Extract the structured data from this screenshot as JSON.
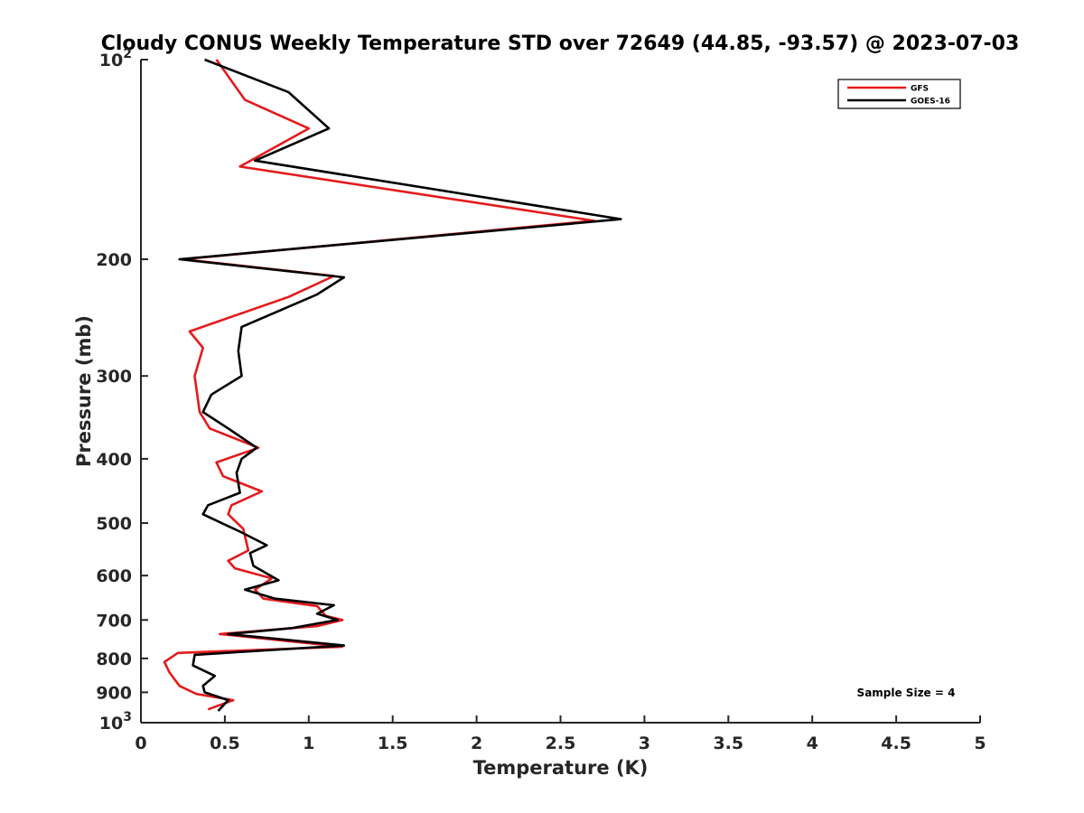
{
  "chart_data": {
    "type": "line",
    "title": "Cloudy CONUS Weekly Temperature STD over 72649 (44.85, -93.57) @ 2023-07-03",
    "xlabel": "Temperature (K)",
    "ylabel": "Pressure (mb)",
    "xlim": [
      0,
      5
    ],
    "ylim": [
      100,
      1000
    ],
    "y_scale": "log",
    "y_reversed": true,
    "grid": false,
    "legend_position": "top-right",
    "x_ticks": [
      {
        "value": 0,
        "label": "0"
      },
      {
        "value": 0.5,
        "label": "0.5"
      },
      {
        "value": 1,
        "label": "1"
      },
      {
        "value": 1.5,
        "label": "1.5"
      },
      {
        "value": 2,
        "label": "2"
      },
      {
        "value": 2.5,
        "label": "2.5"
      },
      {
        "value": 3,
        "label": "3"
      },
      {
        "value": 3.5,
        "label": "3.5"
      },
      {
        "value": 4,
        "label": "4"
      },
      {
        "value": 4.5,
        "label": "4.5"
      },
      {
        "value": 5,
        "label": "5"
      }
    ],
    "y_ticks": [
      {
        "value": 100,
        "base": "10",
        "exp": "2"
      },
      {
        "value": 200,
        "label": "200"
      },
      {
        "value": 300,
        "label": "300"
      },
      {
        "value": 400,
        "label": "400"
      },
      {
        "value": 500,
        "label": "500"
      },
      {
        "value": 600,
        "label": "600"
      },
      {
        "value": 700,
        "label": "700"
      },
      {
        "value": 800,
        "label": "800"
      },
      {
        "value": 900,
        "label": "900"
      },
      {
        "value": 1000,
        "base": "10",
        "exp": "3"
      }
    ],
    "series": [
      {
        "name": "GFS",
        "color": "#e41a1c",
        "points": [
          [
            0.45,
            100
          ],
          [
            0.62,
            115
          ],
          [
            1.0,
            127
          ],
          [
            0.59,
            145
          ],
          [
            2.7,
            175
          ],
          [
            0.25,
            200
          ],
          [
            1.15,
            212
          ],
          [
            0.88,
            228
          ],
          [
            0.29,
            257
          ],
          [
            0.37,
            272
          ],
          [
            0.32,
            300
          ],
          [
            0.35,
            340
          ],
          [
            0.41,
            360
          ],
          [
            0.7,
            385
          ],
          [
            0.45,
            405
          ],
          [
            0.49,
            425
          ],
          [
            0.72,
            448
          ],
          [
            0.54,
            470
          ],
          [
            0.52,
            485
          ],
          [
            0.61,
            510
          ],
          [
            0.64,
            550
          ],
          [
            0.52,
            570
          ],
          [
            0.56,
            585
          ],
          [
            0.78,
            606
          ],
          [
            0.68,
            630
          ],
          [
            0.73,
            650
          ],
          [
            1.05,
            667
          ],
          [
            1.1,
            690
          ],
          [
            1.2,
            700
          ],
          [
            1.05,
            715
          ],
          [
            0.47,
            735
          ],
          [
            1.2,
            768
          ],
          [
            0.22,
            785
          ],
          [
            0.14,
            810
          ],
          [
            0.17,
            840
          ],
          [
            0.23,
            880
          ],
          [
            0.33,
            905
          ],
          [
            0.55,
            925
          ],
          [
            0.4,
            955
          ]
        ]
      },
      {
        "name": "GOES-16",
        "color": "#000000",
        "points": [
          [
            0.38,
            100
          ],
          [
            0.88,
            112
          ],
          [
            1.12,
            127
          ],
          [
            0.68,
            142
          ],
          [
            2.86,
            174
          ],
          [
            0.23,
            200
          ],
          [
            1.21,
            213
          ],
          [
            1.05,
            226
          ],
          [
            0.6,
            253
          ],
          [
            0.58,
            275
          ],
          [
            0.6,
            300
          ],
          [
            0.42,
            320
          ],
          [
            0.37,
            340
          ],
          [
            0.52,
            360
          ],
          [
            0.69,
            385
          ],
          [
            0.6,
            400
          ],
          [
            0.57,
            420
          ],
          [
            0.59,
            450
          ],
          [
            0.4,
            470
          ],
          [
            0.37,
            485
          ],
          [
            0.59,
            515
          ],
          [
            0.75,
            540
          ],
          [
            0.65,
            555
          ],
          [
            0.67,
            580
          ],
          [
            0.82,
            610
          ],
          [
            0.62,
            630
          ],
          [
            0.8,
            650
          ],
          [
            1.15,
            665
          ],
          [
            1.05,
            685
          ],
          [
            1.17,
            700
          ],
          [
            0.9,
            720
          ],
          [
            0.52,
            735
          ],
          [
            1.21,
            765
          ],
          [
            0.32,
            790
          ],
          [
            0.31,
            820
          ],
          [
            0.44,
            850
          ],
          [
            0.37,
            880
          ],
          [
            0.38,
            900
          ],
          [
            0.52,
            925
          ],
          [
            0.46,
            960
          ]
        ]
      }
    ],
    "annotation": "Sample Size = 4"
  }
}
